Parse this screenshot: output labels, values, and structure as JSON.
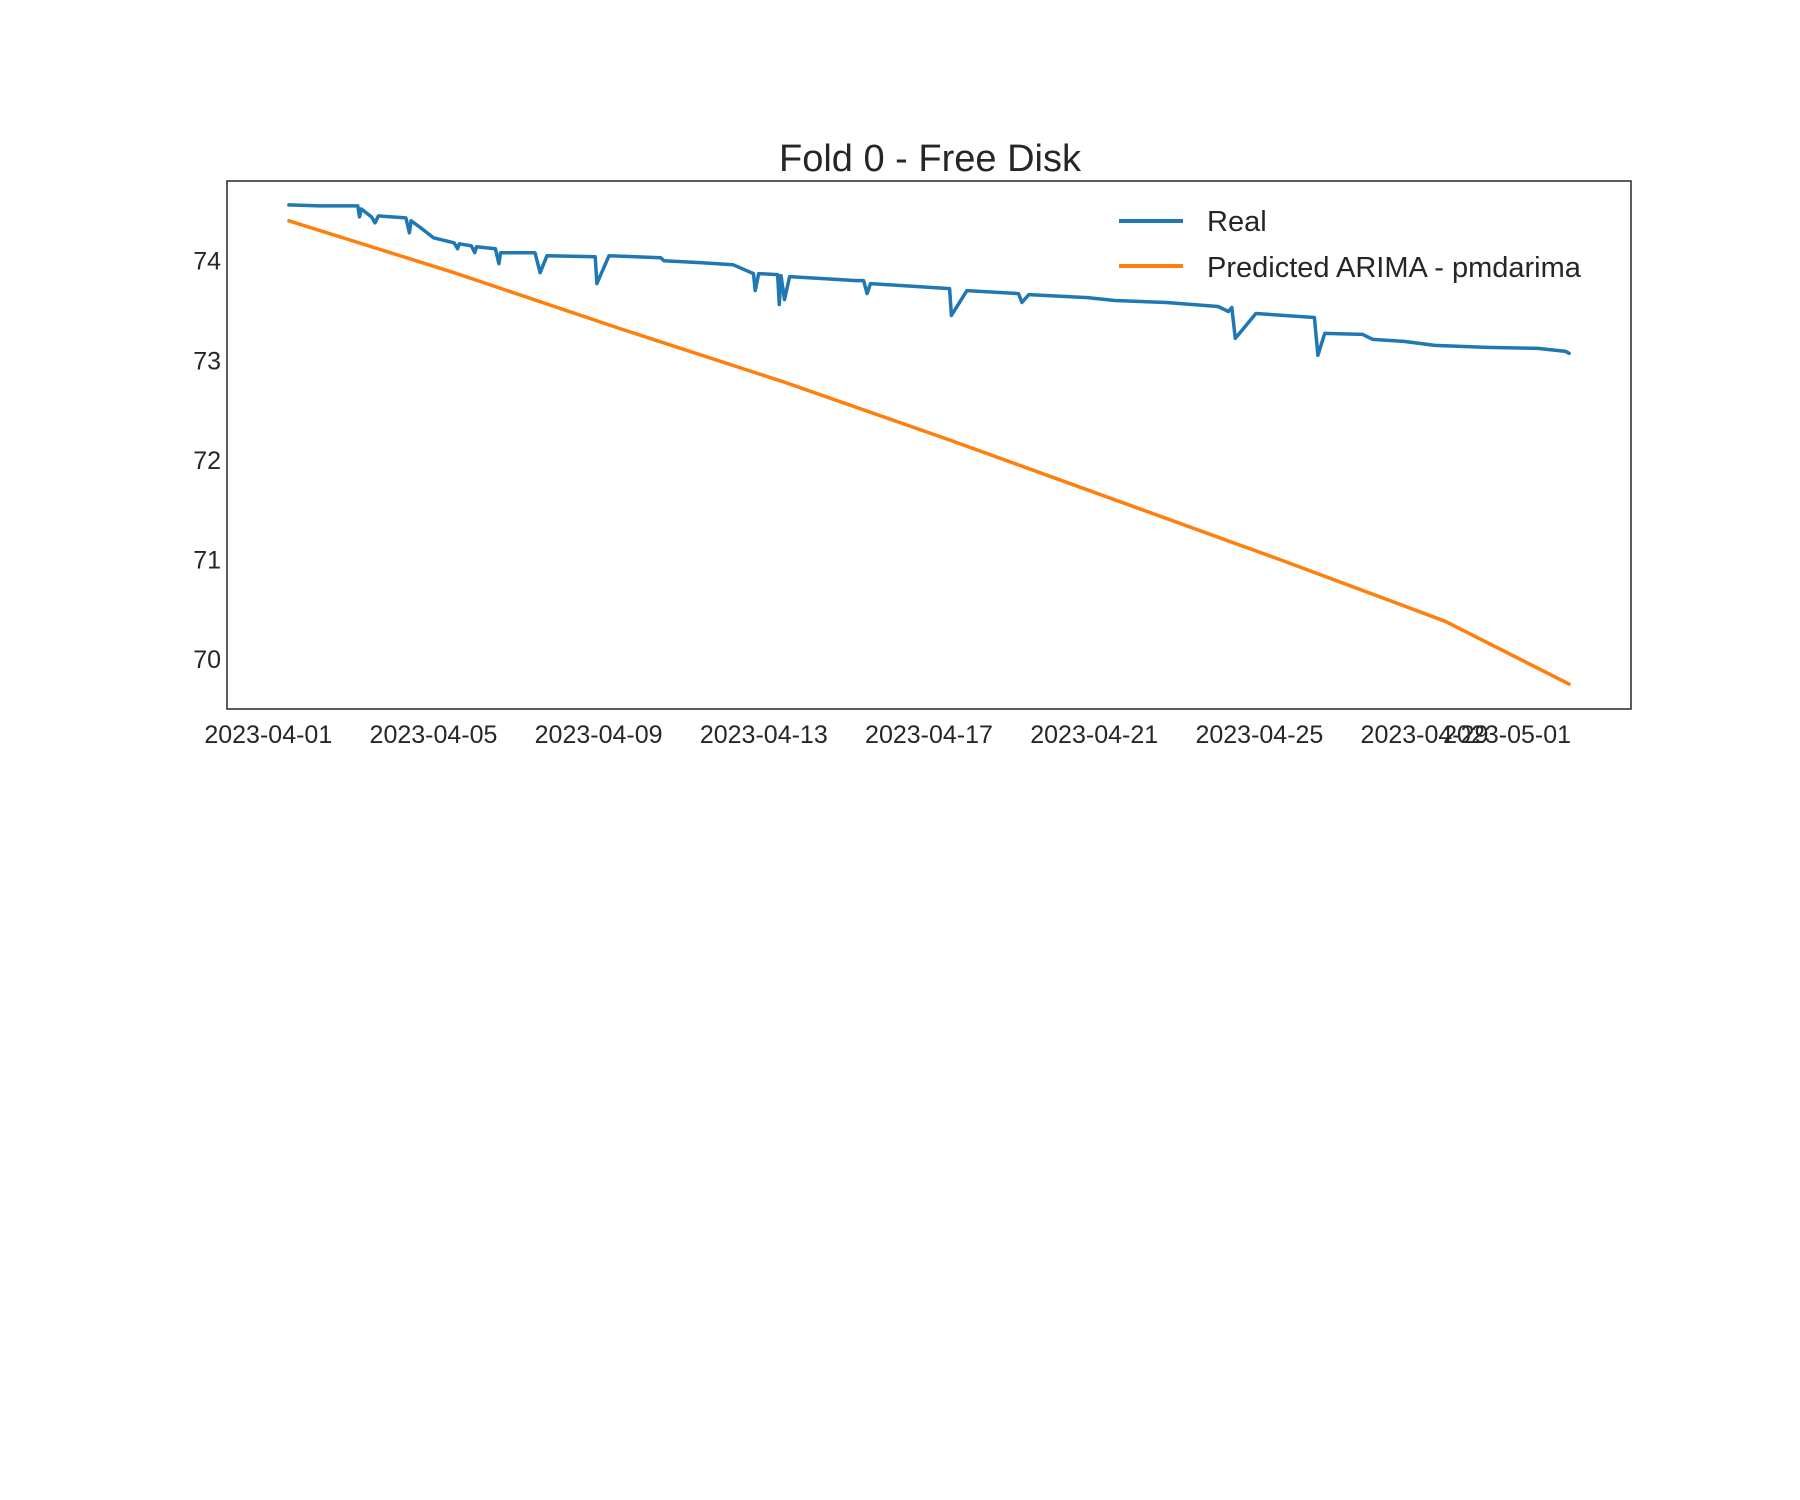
{
  "chart_data": {
    "type": "line",
    "title": "Fold 0 - Free Disk",
    "xlabel": "",
    "ylabel": "",
    "x_range": [
      "2023-03-31T00:00",
      "2023-05-04T00:00"
    ],
    "ylim": [
      69.5,
      74.8
    ],
    "grid": false,
    "legend_position": "top-right",
    "x_ticks": [
      "2023-04-01",
      "2023-04-05",
      "2023-04-09",
      "2023-04-13",
      "2023-04-17",
      "2023-04-21",
      "2023-04-25",
      "2023-04-29",
      "2023-05-01"
    ],
    "y_ticks": [
      70,
      71,
      72,
      73,
      74
    ],
    "y_tick_labels": [
      "70",
      "71",
      "72",
      "73",
      "74"
    ],
    "series": [
      {
        "name": "Real",
        "color": "#1f77b4",
        "points": [
          [
            "2023-04-01T12:00",
            74.56
          ],
          [
            "2023-04-02T06:00",
            74.55
          ],
          [
            "2023-04-03T04:00",
            74.55
          ],
          [
            "2023-04-03T05:00",
            74.44
          ],
          [
            "2023-04-03T06:00",
            74.52
          ],
          [
            "2023-04-03T12:00",
            74.44
          ],
          [
            "2023-04-03T14:00",
            74.38
          ],
          [
            "2023-04-03T16:00",
            74.45
          ],
          [
            "2023-04-04T08:00",
            74.43
          ],
          [
            "2023-04-04T10:00",
            74.28
          ],
          [
            "2023-04-04T11:00",
            74.4
          ],
          [
            "2023-04-04T15:00",
            74.35
          ],
          [
            "2023-04-05T00:00",
            74.23
          ],
          [
            "2023-04-05T12:00",
            74.18
          ],
          [
            "2023-04-05T14:00",
            74.12
          ],
          [
            "2023-04-05T15:00",
            74.17
          ],
          [
            "2023-04-05T22:00",
            74.15
          ],
          [
            "2023-04-06T00:00",
            74.08
          ],
          [
            "2023-04-06T01:00",
            74.14
          ],
          [
            "2023-04-06T12:00",
            74.12
          ],
          [
            "2023-04-06T14:00",
            73.97
          ],
          [
            "2023-04-06T15:00",
            74.08
          ],
          [
            "2023-04-07T11:00",
            74.08
          ],
          [
            "2023-04-07T14:00",
            73.88
          ],
          [
            "2023-04-07T18:00",
            74.05
          ],
          [
            "2023-04-08T22:00",
            74.04
          ],
          [
            "2023-04-08T23:00",
            73.77
          ],
          [
            "2023-04-09T06:00",
            74.05
          ],
          [
            "2023-04-10T12:00",
            74.03
          ],
          [
            "2023-04-10T14:00",
            74.0
          ],
          [
            "2023-04-11T12:00",
            73.98
          ],
          [
            "2023-04-12T06:00",
            73.96
          ],
          [
            "2023-04-12T18:00",
            73.87
          ],
          [
            "2023-04-12T19:00",
            73.7
          ],
          [
            "2023-04-12T21:00",
            73.87
          ],
          [
            "2023-04-13T08:00",
            73.86
          ],
          [
            "2023-04-13T09:00",
            73.56
          ],
          [
            "2023-04-13T10:00",
            73.85
          ],
          [
            "2023-04-13T12:00",
            73.61
          ],
          [
            "2023-04-13T15:00",
            73.84
          ],
          [
            "2023-04-15T06:00",
            73.8
          ],
          [
            "2023-04-15T10:00",
            73.8
          ],
          [
            "2023-04-15T12:00",
            73.67
          ],
          [
            "2023-04-15T14:00",
            73.77
          ],
          [
            "2023-04-17T12:00",
            73.72
          ],
          [
            "2023-04-17T13:00",
            73.45
          ],
          [
            "2023-04-17T22:00",
            73.7
          ],
          [
            "2023-04-19T04:00",
            73.67
          ],
          [
            "2023-04-19T06:00",
            73.58
          ],
          [
            "2023-04-19T10:00",
            73.66
          ],
          [
            "2023-04-20T20:00",
            73.63
          ],
          [
            "2023-04-21T12:00",
            73.6
          ],
          [
            "2023-04-22T18:00",
            73.58
          ],
          [
            "2023-04-24T00:00",
            73.54
          ],
          [
            "2023-04-24T06:00",
            73.49
          ],
          [
            "2023-04-24T08:00",
            73.53
          ],
          [
            "2023-04-24T10:00",
            73.22
          ],
          [
            "2023-04-24T22:00",
            73.47
          ],
          [
            "2023-04-26T08:00",
            73.43
          ],
          [
            "2023-04-26T10:00",
            73.05
          ],
          [
            "2023-04-26T14:00",
            73.27
          ],
          [
            "2023-04-27T12:00",
            73.26
          ],
          [
            "2023-04-27T18:00",
            73.21
          ],
          [
            "2023-04-28T12:00",
            73.19
          ],
          [
            "2023-04-29T06:00",
            73.15
          ],
          [
            "2023-04-30T12:00",
            73.13
          ],
          [
            "2023-05-01T18:00",
            73.12
          ],
          [
            "2023-05-02T10:00",
            73.09
          ],
          [
            "2023-05-02T12:00",
            73.07
          ]
        ]
      },
      {
        "name": "Predicted ARIMA - pmdarima",
        "color": "#ff7f0e",
        "points": [
          [
            "2023-04-01T12:00",
            74.4
          ],
          [
            "2023-04-05T12:00",
            73.88
          ],
          [
            "2023-04-09T12:00",
            73.32
          ],
          [
            "2023-04-13T12:00",
            72.78
          ],
          [
            "2023-04-17T12:00",
            72.2
          ],
          [
            "2023-04-21T12:00",
            71.6
          ],
          [
            "2023-04-25T12:00",
            71.0
          ],
          [
            "2023-04-29T12:00",
            70.38
          ],
          [
            "2023-05-02T12:00",
            69.75
          ]
        ]
      }
    ]
  }
}
